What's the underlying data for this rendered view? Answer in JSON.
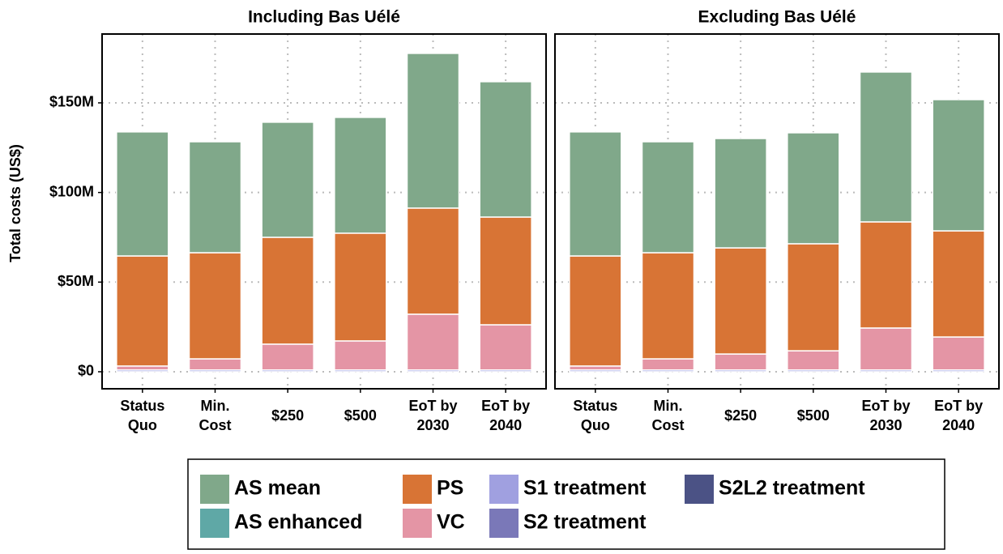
{
  "chart_data": [
    {
      "type": "bar",
      "stacked": true,
      "title": "Including Bas Uélé",
      "y_label": "Total costs (US$)",
      "categories": [
        "Status\nQuo",
        "Min.\nCost",
        "$250",
        "$500",
        "EoT by\n2030",
        "EoT by\n2040"
      ],
      "series": [
        {
          "name": "AS mean",
          "color": "#80a88a",
          "values": [
            69.2,
            61.9,
            64.2,
            64.6,
            86.3,
            75.5
          ]
        },
        {
          "name": "AS enhanced",
          "color": "#5fa8a6",
          "values": [
            0,
            0,
            0,
            0,
            0,
            0
          ]
        },
        {
          "name": "PS",
          "color": "#d87435",
          "values": [
            61.4,
            59.2,
            59.6,
            60.1,
            59.2,
            60.1
          ]
        },
        {
          "name": "VC",
          "color": "#e495a5",
          "values": [
            2.2,
            6.2,
            14.4,
            16.2,
            31.1,
            25.2
          ]
        },
        {
          "name": "S1 treatment",
          "color": "#a0a0e0",
          "values": [
            1,
            1,
            1,
            1,
            1,
            1
          ]
        },
        {
          "name": "S2 treatment",
          "color": "#7a78b8",
          "values": [
            0,
            0,
            0,
            0,
            0,
            0
          ]
        },
        {
          "name": "S2L2 treatment",
          "color": "#4b5285",
          "values": [
            0,
            0,
            0,
            0,
            0,
            0
          ]
        }
      ],
      "ylim": [
        -9.5,
        188.4
      ],
      "yticks": [
        {
          "value": 0,
          "label": "$0"
        },
        {
          "value": 50,
          "label": "$50M"
        },
        {
          "value": 100,
          "label": "$100M"
        },
        {
          "value": 150,
          "label": "$150M"
        }
      ],
      "grid": true
    },
    {
      "type": "bar",
      "stacked": true,
      "title": "Excluding Bas Uélé",
      "categories": [
        "Status\nQuo",
        "Min.\nCost",
        "$250",
        "$500",
        "EoT by\n2030",
        "EoT by\n2040"
      ],
      "series": [
        {
          "name": "AS mean",
          "color": "#80a88a",
          "values": [
            69.2,
            61.9,
            61.0,
            61.9,
            83.6,
            73.2
          ]
        },
        {
          "name": "AS enhanced",
          "color": "#5fa8a6",
          "values": [
            0,
            0,
            0,
            0,
            0,
            0
          ]
        },
        {
          "name": "PS",
          "color": "#d87435",
          "values": [
            61.4,
            59.2,
            59.2,
            59.7,
            59.2,
            59.2
          ]
        },
        {
          "name": "VC",
          "color": "#e495a5",
          "values": [
            2.2,
            6.2,
            8.9,
            10.7,
            23.4,
            18.4
          ]
        },
        {
          "name": "S1 treatment",
          "color": "#a0a0e0",
          "values": [
            1,
            1,
            1,
            1,
            1,
            1
          ]
        },
        {
          "name": "S2 treatment",
          "color": "#7a78b8",
          "values": [
            0,
            0,
            0,
            0,
            0,
            0
          ]
        },
        {
          "name": "S2L2 treatment",
          "color": "#4b5285",
          "values": [
            0,
            0,
            0,
            0,
            0,
            0
          ]
        }
      ],
      "ylim": [
        -9.5,
        188.4
      ],
      "yticks": [
        {
          "value": 0,
          "label": "$0"
        },
        {
          "value": 50,
          "label": "$50M"
        },
        {
          "value": 100,
          "label": "$100M"
        },
        {
          "value": 150,
          "label": "$150M"
        }
      ],
      "grid": true
    }
  ]
}
